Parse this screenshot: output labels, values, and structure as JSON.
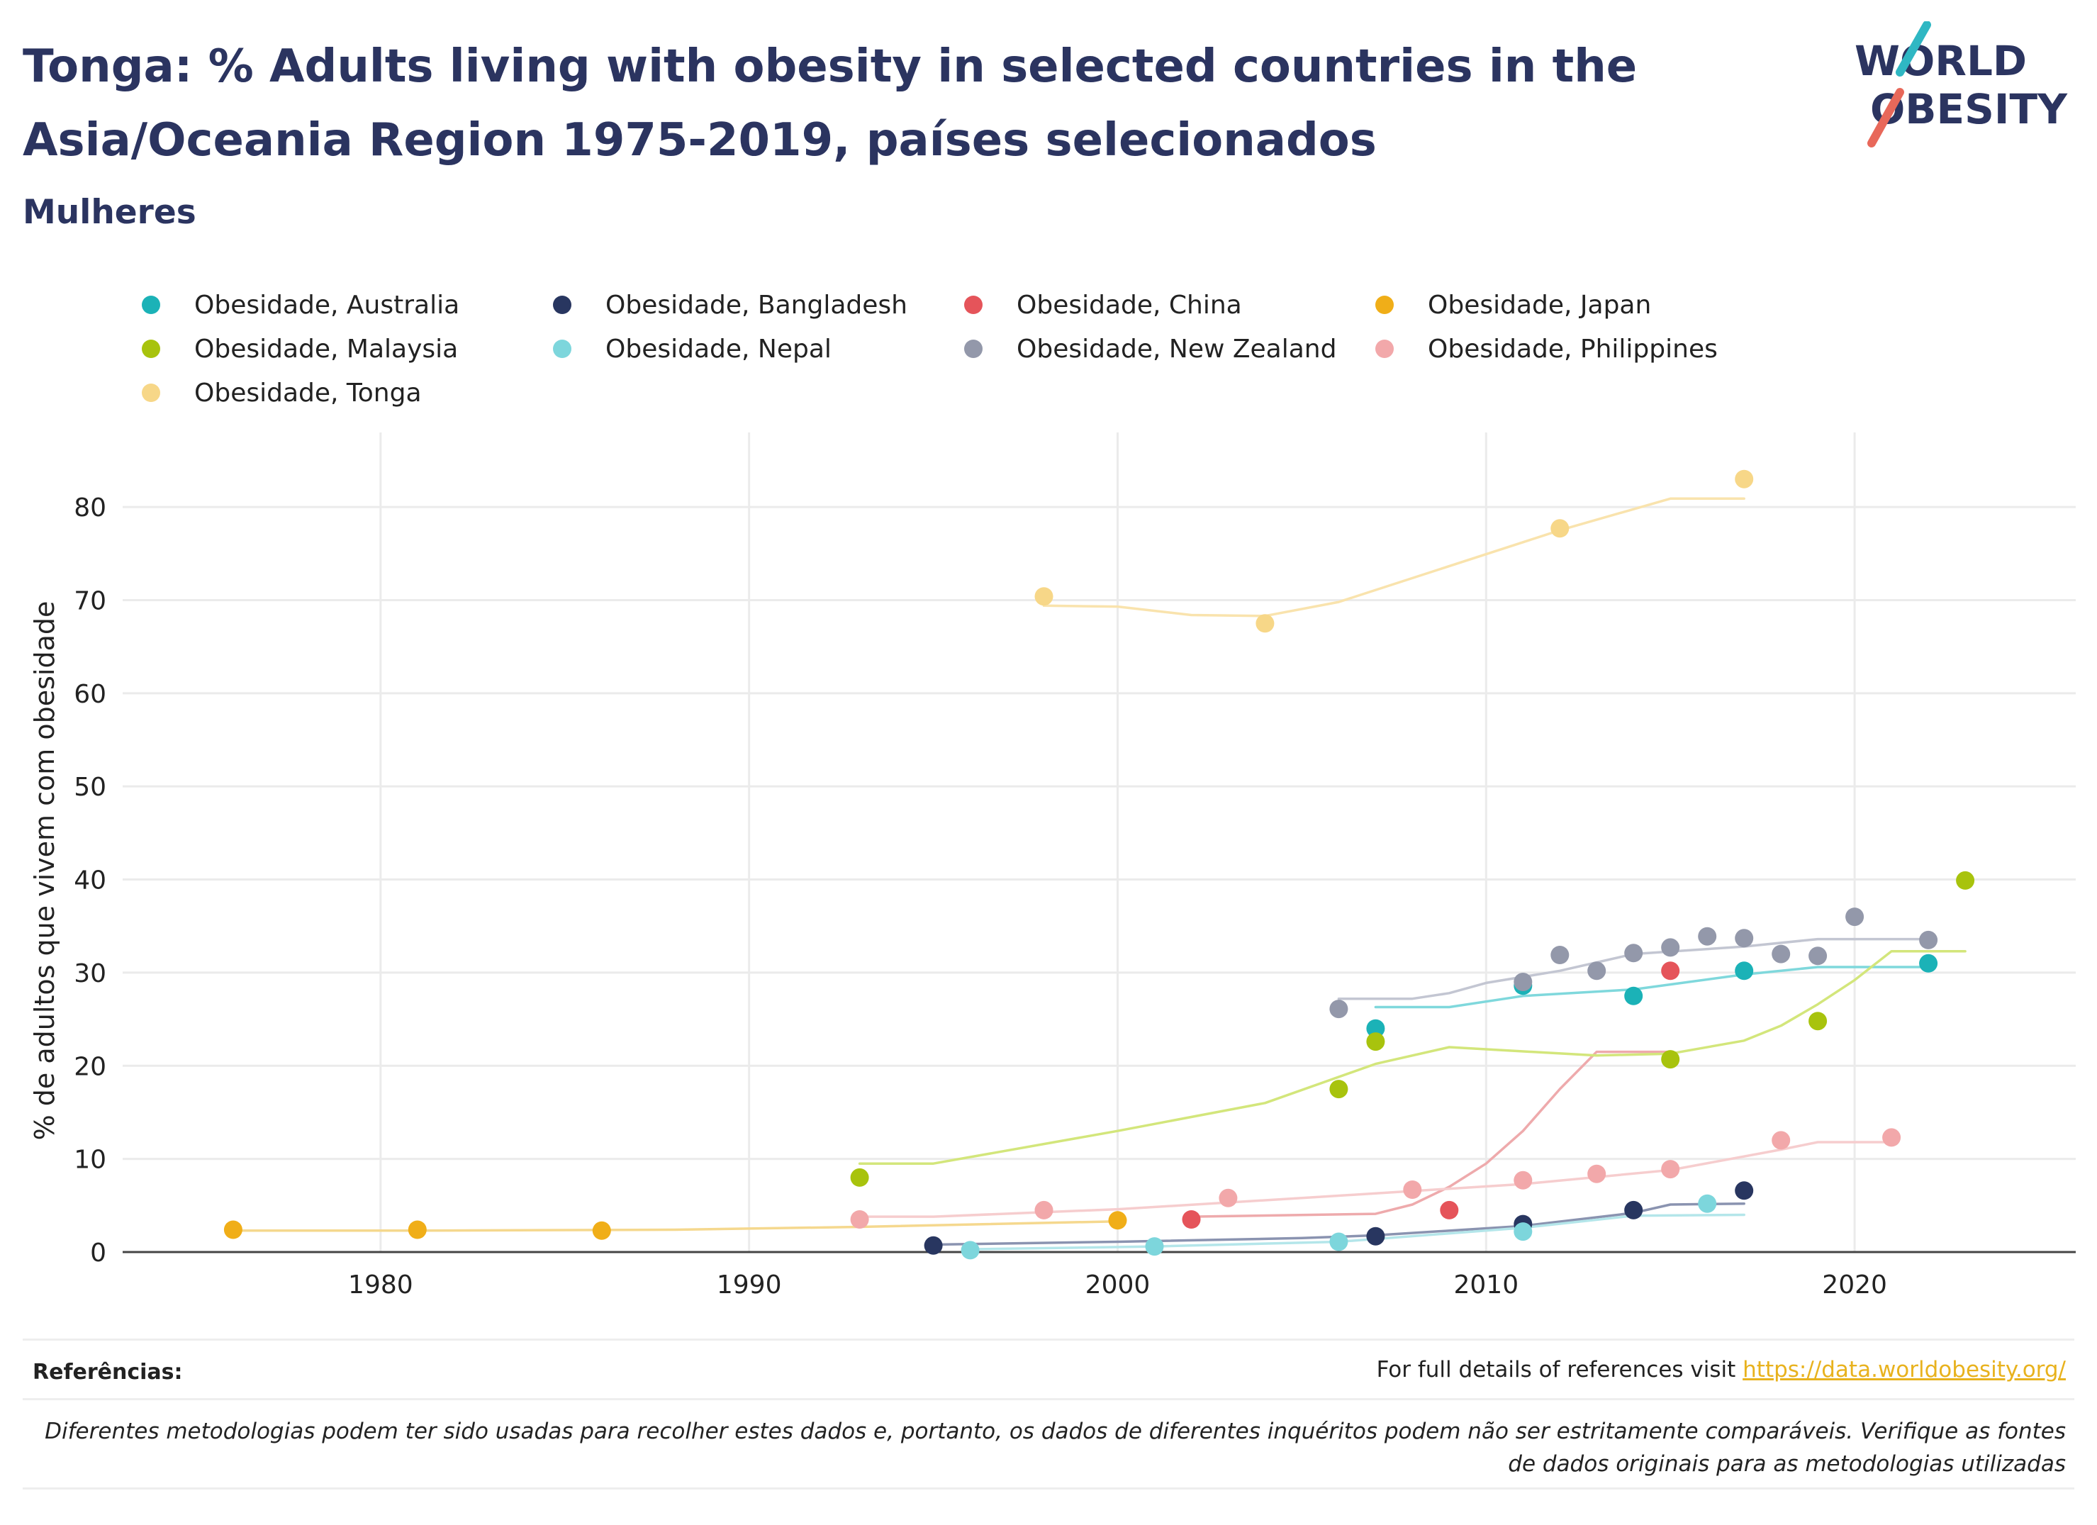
{
  "header": {
    "title": "Tonga: % Adults living with obesity in selected countries in the Asia/Oceania Region 1975-2019, países selecionados",
    "subtitle": "Mulheres",
    "logo_line1": "WORLD",
    "logo_line2": "OBESITY"
  },
  "footer": {
    "ref_label": "Referências:",
    "ref_text": "For full details of references visit ",
    "ref_link": "https://data.worldobesity.org/",
    "note": "Diferentes metodologias podem ter sido usadas para recolher estes dados e, portanto, os dados de diferentes inquéritos podem não ser estritamente comparáveis. Verifique as fontes de dados originais para as metodologias utilizadas"
  },
  "chart_data": {
    "type": "scatter",
    "title": "Tonga: % Adults living with obesity in selected countries in the Asia/Oceania Region 1975-2019, países selecionados",
    "subtitle": "Mulheres",
    "xlabel": "",
    "ylabel": "% de adultos que vivem com obesidade",
    "xlim": [
      1973,
      2026
    ],
    "ylim": [
      0,
      88
    ],
    "xticks": [
      1980,
      1990,
      2000,
      2010,
      2020
    ],
    "yticks": [
      0,
      10,
      20,
      30,
      40,
      50,
      60,
      70,
      80
    ],
    "grid": true,
    "legend_position": "top",
    "series": [
      {
        "name": "Obesidade, Australia",
        "color": "#1bb2b7",
        "trend_color": "#7fd8dc",
        "points": [
          [
            2007,
            24.0
          ],
          [
            2011,
            28.6
          ],
          [
            2014,
            27.5
          ],
          [
            2017,
            30.2
          ],
          [
            2022,
            31.0
          ]
        ],
        "trend": [
          [
            2007,
            26.3
          ],
          [
            2009,
            26.3
          ],
          [
            2011,
            27.5
          ],
          [
            2014,
            28.2
          ],
          [
            2017,
            29.8
          ],
          [
            2019,
            30.6
          ],
          [
            2022,
            30.6
          ]
        ]
      },
      {
        "name": "Obesidade, Bangladesh",
        "color": "#283660",
        "trend_color": "#8a93b0",
        "points": [
          [
            1995,
            0.7
          ],
          [
            2007,
            1.7
          ],
          [
            2011,
            3.0
          ],
          [
            2014,
            4.5
          ],
          [
            2017,
            6.6
          ]
        ],
        "trend": [
          [
            1995,
            0.8
          ],
          [
            2000,
            1.1
          ],
          [
            2005,
            1.5
          ],
          [
            2007,
            1.8
          ],
          [
            2011,
            2.8
          ],
          [
            2014,
            4.2
          ],
          [
            2015,
            5.1
          ],
          [
            2017,
            5.2
          ]
        ]
      },
      {
        "name": "Obesidade, China",
        "color": "#e5545a",
        "trend_color": "#eeaaac",
        "points": [
          [
            2002,
            3.5
          ],
          [
            2009,
            4.5
          ],
          [
            2015,
            30.2
          ]
        ],
        "trend": [
          [
            2002,
            3.8
          ],
          [
            2007,
            4.1
          ],
          [
            2008,
            5.1
          ],
          [
            2009,
            7.0
          ],
          [
            2010,
            9.5
          ],
          [
            2011,
            13.0
          ],
          [
            2012,
            17.5
          ],
          [
            2013,
            21.5
          ],
          [
            2015,
            21.5
          ]
        ]
      },
      {
        "name": "Obesidade, Japan",
        "color": "#f0ae18",
        "trend_color": "#f5d88e",
        "points": [
          [
            1976,
            2.4
          ],
          [
            1981,
            2.4
          ],
          [
            1986,
            2.3
          ],
          [
            2000,
            3.4
          ]
        ],
        "trend": [
          [
            1976,
            2.3
          ],
          [
            1981,
            2.3
          ],
          [
            1988,
            2.4
          ],
          [
            1993,
            2.7
          ],
          [
            2000,
            3.3
          ]
        ]
      },
      {
        "name": "Obesidade, Malaysia",
        "color": "#a8c30d",
        "trend_color": "#d3e67b",
        "points": [
          [
            1993,
            8.0
          ],
          [
            2006,
            17.5
          ],
          [
            2007,
            22.6
          ],
          [
            2015,
            20.7
          ],
          [
            2019,
            24.8
          ],
          [
            2023,
            39.9
          ]
        ],
        "trend": [
          [
            1993,
            9.5
          ],
          [
            1995,
            9.5
          ],
          [
            2000,
            13.0
          ],
          [
            2004,
            16.0
          ],
          [
            2007,
            20.2
          ],
          [
            2009,
            22.0
          ],
          [
            2013,
            21.1
          ],
          [
            2015,
            21.3
          ],
          [
            2017,
            22.7
          ],
          [
            2018,
            24.3
          ],
          [
            2019,
            26.6
          ],
          [
            2020,
            29.2
          ],
          [
            2021,
            32.3
          ],
          [
            2023,
            32.3
          ]
        ]
      },
      {
        "name": "Obesidade, Nepal",
        "color": "#7dd6dc",
        "trend_color": "#b4e6ea",
        "points": [
          [
            1996,
            0.2
          ],
          [
            2001,
            0.6
          ],
          [
            2006,
            1.1
          ],
          [
            2011,
            2.2
          ],
          [
            2016,
            5.2
          ]
        ],
        "trend": [
          [
            1996,
            0.3
          ],
          [
            2001,
            0.6
          ],
          [
            2006,
            1.1
          ],
          [
            2011,
            2.6
          ],
          [
            2014,
            3.9
          ],
          [
            2017,
            4.0
          ]
        ]
      },
      {
        "name": "Obesidade, New Zealand",
        "color": "#9398aa",
        "trend_color": "#c3c6d2",
        "points": [
          [
            2006,
            26.1
          ],
          [
            2011,
            29.0
          ],
          [
            2012,
            31.9
          ],
          [
            2013,
            30.2
          ],
          [
            2014,
            32.1
          ],
          [
            2015,
            32.7
          ],
          [
            2016,
            33.9
          ],
          [
            2017,
            33.7
          ],
          [
            2018,
            32.0
          ],
          [
            2019,
            31.8
          ],
          [
            2020,
            36.0
          ],
          [
            2022,
            33.5
          ]
        ],
        "trend": [
          [
            2006,
            27.2
          ],
          [
            2008,
            27.2
          ],
          [
            2009,
            27.8
          ],
          [
            2010,
            28.9
          ],
          [
            2012,
            30.2
          ],
          [
            2014,
            32.0
          ],
          [
            2017,
            32.8
          ],
          [
            2019,
            33.6
          ],
          [
            2022,
            33.6
          ]
        ]
      },
      {
        "name": "Obesidade, Philippines",
        "color": "#f2a8aa",
        "trend_color": "#f6cdce",
        "points": [
          [
            1993,
            3.5
          ],
          [
            1998,
            4.5
          ],
          [
            2003,
            5.8
          ],
          [
            2008,
            6.7
          ],
          [
            2011,
            7.7
          ],
          [
            2013,
            8.4
          ],
          [
            2015,
            8.9
          ],
          [
            2018,
            12.0
          ],
          [
            2021,
            12.3
          ]
        ],
        "trend": [
          [
            1993,
            3.8
          ],
          [
            1995,
            3.8
          ],
          [
            2000,
            4.6
          ],
          [
            2005,
            5.8
          ],
          [
            2011,
            7.3
          ],
          [
            2015,
            8.8
          ],
          [
            2018,
            11.0
          ],
          [
            2019,
            11.8
          ],
          [
            2021,
            11.8
          ]
        ]
      },
      {
        "name": "Obesidade, Tonga",
        "color": "#f7d788",
        "trend_color": "#f9e3ad",
        "points": [
          [
            1998,
            70.4
          ],
          [
            2004,
            67.5
          ],
          [
            2012,
            77.7
          ],
          [
            2017,
            83.0
          ]
        ],
        "trend": [
          [
            1998,
            69.4
          ],
          [
            2000,
            69.3
          ],
          [
            2002,
            68.4
          ],
          [
            2004,
            68.3
          ],
          [
            2006,
            69.8
          ],
          [
            2012,
            77.5
          ],
          [
            2015,
            80.9
          ],
          [
            2017,
            80.9
          ]
        ]
      }
    ]
  }
}
